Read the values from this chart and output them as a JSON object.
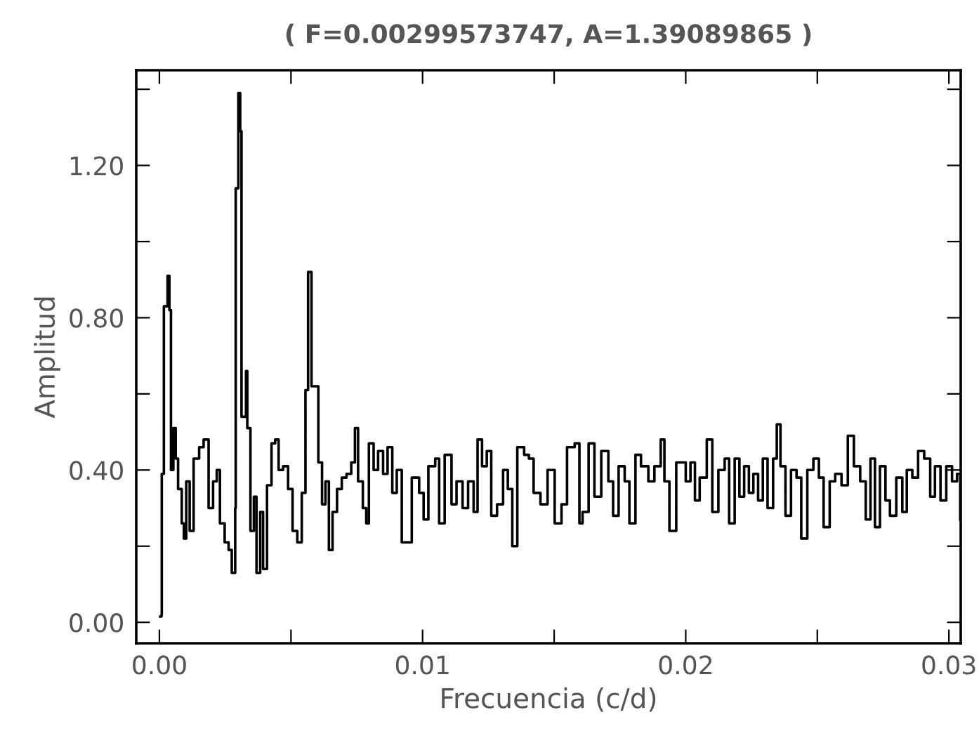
{
  "chart_data": {
    "type": "step",
    "title": "( F=0.00299573747, A=1.39089865 )",
    "xlabel": "Frecuencia (c/d)",
    "ylabel": "Amplitud",
    "xlim": [
      -0.00088,
      0.03045
    ],
    "ylim": [
      -0.055,
      1.45
    ],
    "xticks": [
      {
        "value": 0,
        "label": "0.00"
      },
      {
        "value": 0.005,
        "label": null
      },
      {
        "value": 0.01,
        "label": "0.01"
      },
      {
        "value": 0.015,
        "label": null
      },
      {
        "value": 0.02,
        "label": "0.02"
      },
      {
        "value": 0.025,
        "label": null
      },
      {
        "value": 0.03,
        "label": "0.03"
      }
    ],
    "yticks": [
      {
        "value": 0,
        "label": "0.00"
      },
      {
        "value": 0.2,
        "label": null
      },
      {
        "value": 0.4,
        "label": "0.40"
      },
      {
        "value": 0.6,
        "label": null
      },
      {
        "value": 0.8,
        "label": "0.80"
      },
      {
        "value": 1.0,
        "label": null
      },
      {
        "value": 1.2,
        "label": "1.20"
      },
      {
        "value": 1.4,
        "label": null
      }
    ],
    "grid": false,
    "legend": false,
    "series": [
      {
        "color": "#000000",
        "x": [
          3e-05,
          8e-05,
          9e-05,
          0.00017,
          0.00031,
          0.00038,
          0.00044,
          0.00053,
          0.00062,
          0.00071,
          0.00085,
          0.00093,
          0.00102,
          0.00115,
          0.0013,
          0.00151,
          0.00168,
          0.00187,
          0.00204,
          0.00218,
          0.0023,
          0.00248,
          0.00263,
          0.00275,
          0.00288,
          0.0029,
          0.003,
          0.00307,
          0.00312,
          0.00329,
          0.00334,
          0.00346,
          0.00359,
          0.00369,
          0.00383,
          0.00394,
          0.00409,
          0.00426,
          0.0044,
          0.00453,
          0.0047,
          0.00489,
          0.00506,
          0.00524,
          0.00541,
          0.00555,
          0.00565,
          0.00578,
          0.00595,
          0.00604,
          0.00618,
          0.00631,
          0.00644,
          0.00658,
          0.00675,
          0.00693,
          0.00711,
          0.00729,
          0.00743,
          0.00755,
          0.00773,
          0.00786,
          0.00796,
          0.00814,
          0.00831,
          0.0085,
          0.00867,
          0.00885,
          0.00902,
          0.00921,
          0.00959,
          0.00987,
          0.01004,
          0.01022,
          0.01048,
          0.01063,
          0.01084,
          0.0111,
          0.01129,
          0.01152,
          0.01173,
          0.01194,
          0.01209,
          0.01226,
          0.01244,
          0.01261,
          0.01283,
          0.01306,
          0.01324,
          0.01341,
          0.0136,
          0.01386,
          0.01404,
          0.01422,
          0.01448,
          0.01475,
          0.01502,
          0.01528,
          0.01549,
          0.01578,
          0.01596,
          0.01608,
          0.01631,
          0.01653,
          0.01679,
          0.01706,
          0.01724,
          0.01745,
          0.01768,
          0.01786,
          0.01809,
          0.0183,
          0.01858,
          0.01881,
          0.01905,
          0.01919,
          0.01938,
          0.01964,
          0.02,
          0.02018,
          0.02035,
          0.02053,
          0.0208,
          0.02101,
          0.02124,
          0.02148,
          0.02165,
          0.02186,
          0.02204,
          0.02222,
          0.0224,
          0.02257,
          0.02275,
          0.02293,
          0.02311,
          0.02332,
          0.02346,
          0.0236,
          0.02379,
          0.024,
          0.02421,
          0.02439,
          0.02462,
          0.02485,
          0.02506,
          0.02524,
          0.02547,
          0.02568,
          0.02592,
          0.02616,
          0.02639,
          0.02663,
          0.02684,
          0.02702,
          0.02719,
          0.02738,
          0.02759,
          0.02776,
          0.028,
          0.02823,
          0.0284,
          0.02861,
          0.02883,
          0.02906,
          0.02929,
          0.02947,
          0.02968,
          0.0299,
          0.03012,
          0.03031,
          0.03043
        ],
        "values": [
          0.015,
          0.02,
          0.39,
          0.83,
          0.91,
          0.82,
          0.4,
          0.51,
          0.43,
          0.35,
          0.26,
          0.22,
          0.37,
          0.24,
          0.43,
          0.46,
          0.48,
          0.3,
          0.37,
          0.4,
          0.26,
          0.21,
          0.19,
          0.13,
          0.3,
          1.14,
          1.39,
          1.29,
          0.54,
          0.66,
          0.51,
          0.24,
          0.33,
          0.13,
          0.29,
          0.14,
          0.36,
          0.47,
          0.48,
          0.4,
          0.41,
          0.35,
          0.24,
          0.21,
          0.34,
          0.61,
          0.92,
          0.62,
          0.62,
          0.42,
          0.31,
          0.37,
          0.19,
          0.29,
          0.35,
          0.38,
          0.39,
          0.42,
          0.51,
          0.37,
          0.3,
          0.26,
          0.47,
          0.4,
          0.45,
          0.39,
          0.46,
          0.34,
          0.4,
          0.21,
          0.38,
          0.34,
          0.27,
          0.41,
          0.43,
          0.26,
          0.44,
          0.31,
          0.37,
          0.3,
          0.37,
          0.29,
          0.48,
          0.41,
          0.45,
          0.28,
          0.31,
          0.4,
          0.35,
          0.2,
          0.46,
          0.44,
          0.43,
          0.34,
          0.31,
          0.4,
          0.26,
          0.31,
          0.46,
          0.47,
          0.26,
          0.29,
          0.47,
          0.33,
          0.45,
          0.37,
          0.28,
          0.41,
          0.37,
          0.26,
          0.44,
          0.41,
          0.37,
          0.41,
          0.48,
          0.37,
          0.24,
          0.42,
          0.37,
          0.42,
          0.32,
          0.38,
          0.48,
          0.29,
          0.4,
          0.43,
          0.26,
          0.43,
          0.33,
          0.41,
          0.34,
          0.39,
          0.32,
          0.43,
          0.3,
          0.43,
          0.52,
          0.41,
          0.28,
          0.4,
          0.38,
          0.22,
          0.4,
          0.43,
          0.38,
          0.25,
          0.37,
          0.39,
          0.36,
          0.49,
          0.41,
          0.37,
          0.27,
          0.43,
          0.25,
          0.41,
          0.32,
          0.28,
          0.38,
          0.29,
          0.4,
          0.38,
          0.45,
          0.43,
          0.33,
          0.41,
          0.32,
          0.41,
          0.37,
          0.39,
          0.27
        ]
      }
    ]
  }
}
